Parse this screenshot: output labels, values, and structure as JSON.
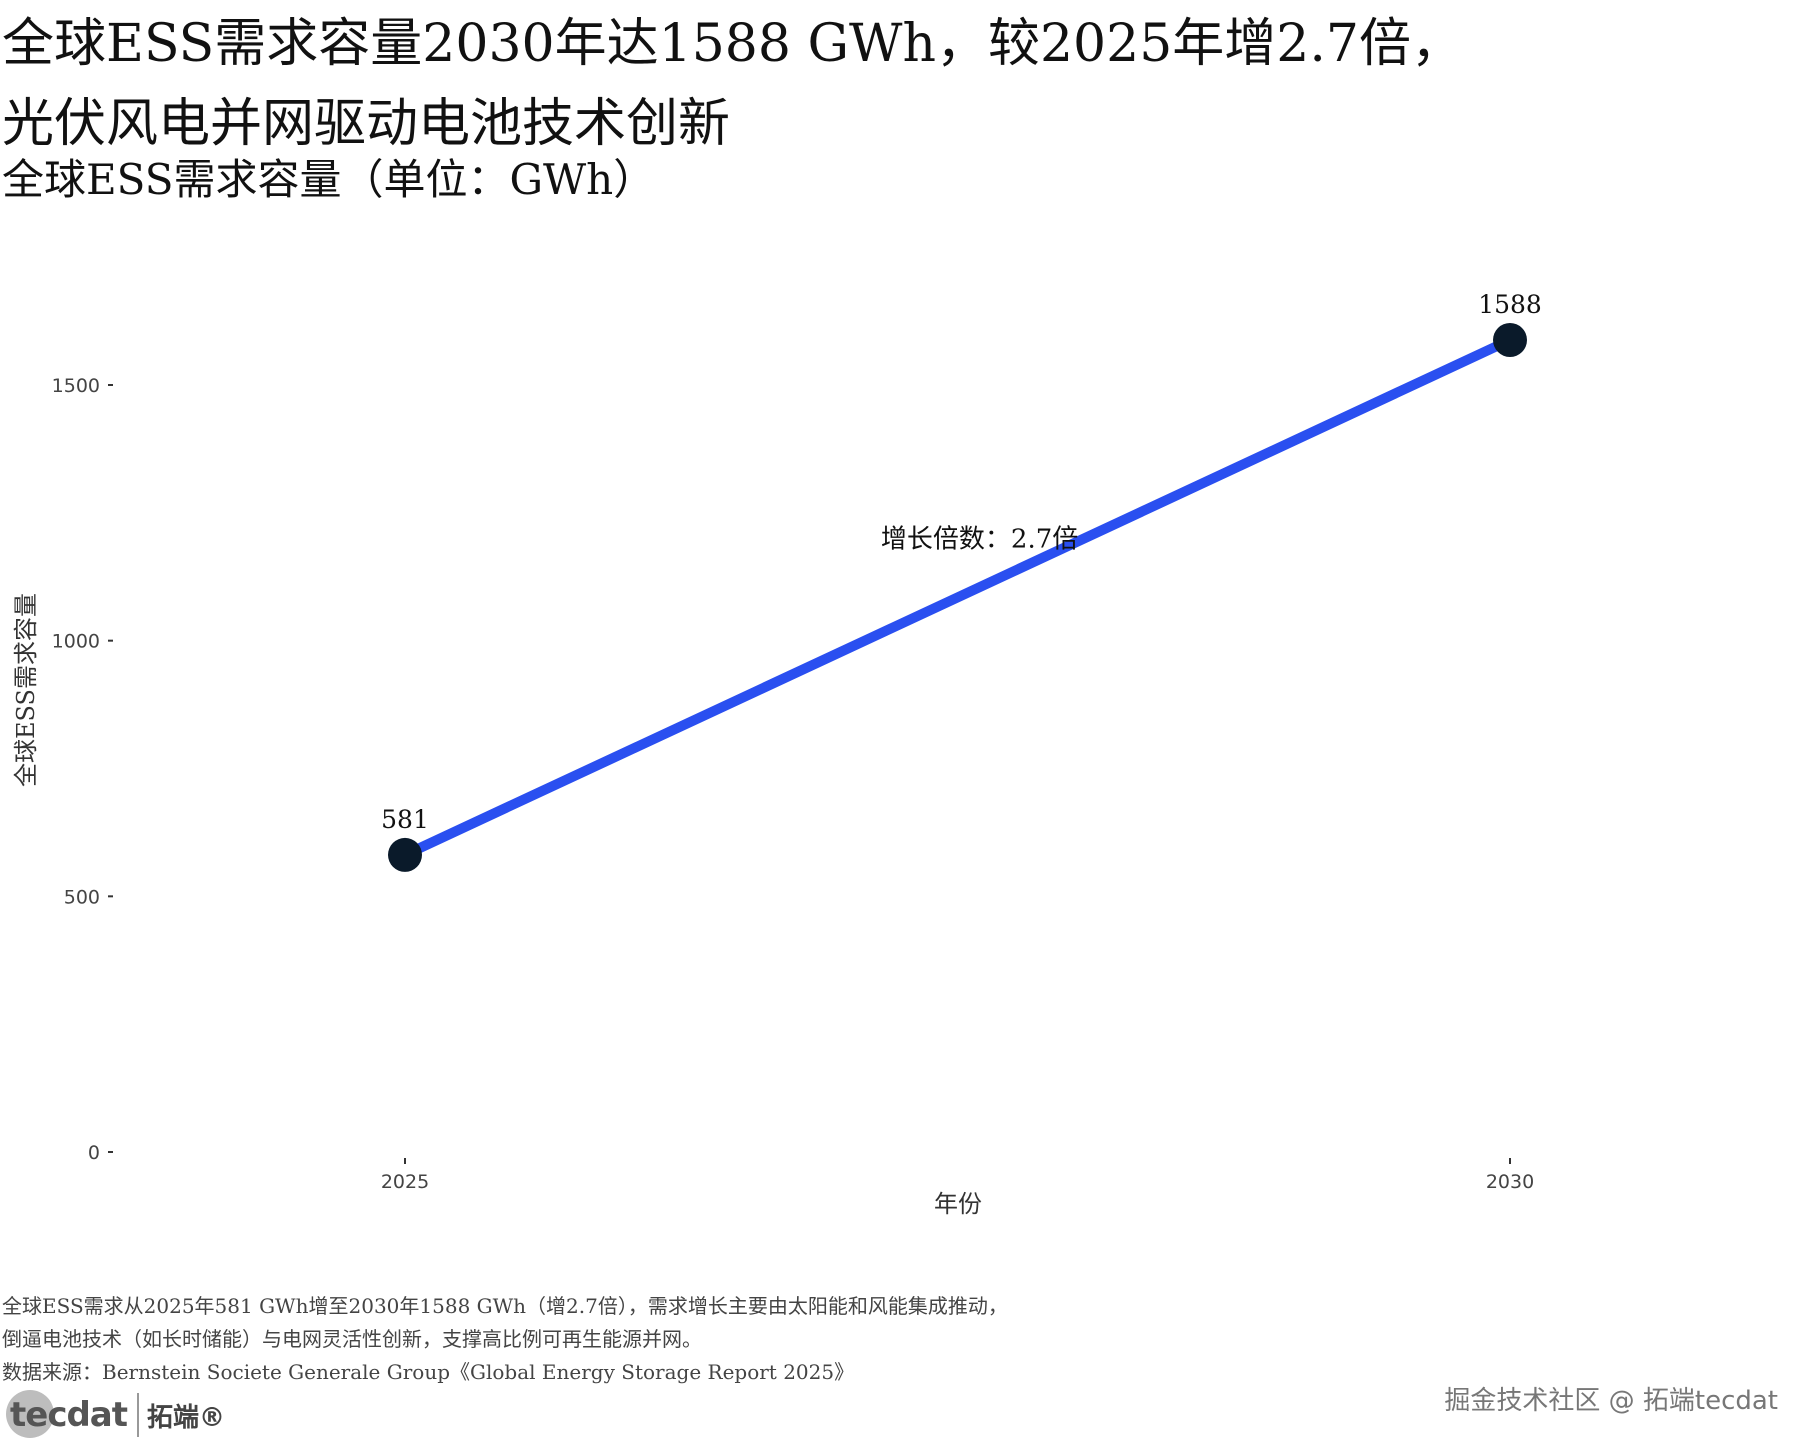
{
  "title_line1": "全球ESS需求容量2030年达1588 GWh，较2025年增2.7倍，",
  "title_line2": "光伏风电并网驱动电池技术创新",
  "subtitle": "全球ESS需求容量（单位：GWh）",
  "chart_data": {
    "type": "line",
    "x": [
      "2025",
      "2030"
    ],
    "series": [
      {
        "values": [
          581,
          1588
        ]
      }
    ],
    "data_labels": [
      "581",
      "1588"
    ],
    "xlabel": "年份",
    "ylabel": "全球ESS需求容量",
    "ylim": [
      0,
      1800
    ],
    "yticks": [
      0,
      500,
      1000,
      1500
    ],
    "ytick_labels": [
      "0",
      "500",
      "1000",
      "1500"
    ],
    "annotation": {
      "text": "增长倍数：2.7倍",
      "x": 2027.6,
      "y": 1200
    },
    "grid": false,
    "line_color": "#2a4ff0",
    "point_color": "#0a1a2a"
  },
  "caption": {
    "line1": "全球ESS需求从2025年581 GWh增至2030年1588 GWh（增2.7倍），需求增长主要由太阳能和风能集成推动，",
    "line2": "倒逼电池技术（如长时储能）与电网灵活性创新，支撑高比例可再生能源并网。",
    "line3": "数据来源：Bernstein Societe Generale Group《Global Energy Storage Report 2025》"
  },
  "logo": {
    "en": "tecdat",
    "cn": "拓端®"
  },
  "watermark": "掘金技术社区 @ 拓端tecdat"
}
